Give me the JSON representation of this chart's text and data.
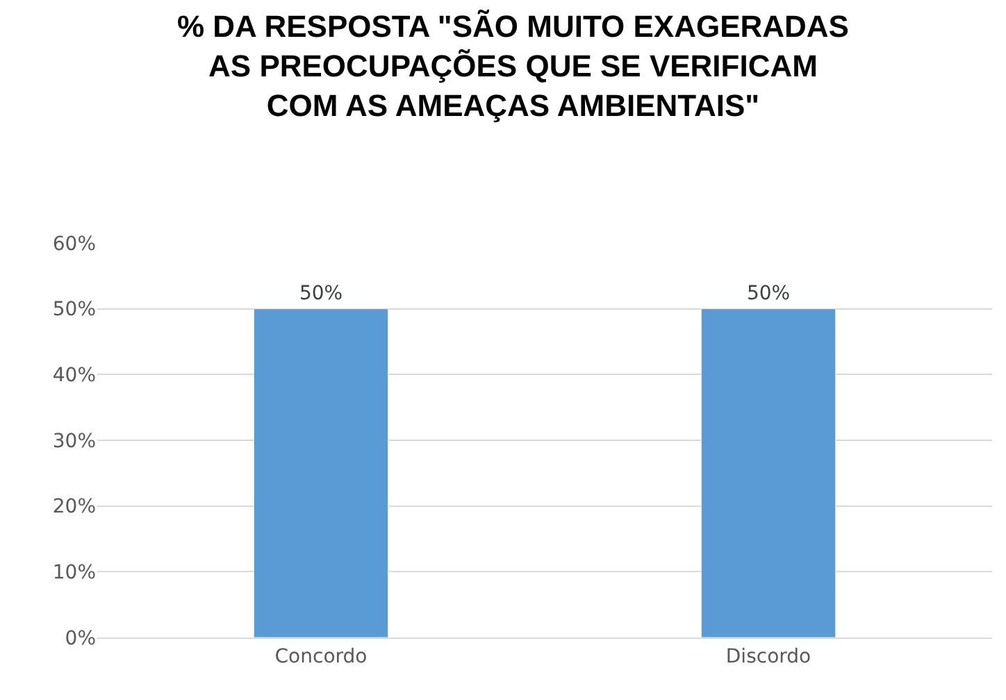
{
  "chart_data": {
    "type": "bar",
    "title": "% DA RESPOSTA \"SÃO MUITO EXAGERADAS\nAS PREOCUPAÇÕES QUE SE VERIFICAM\nCOM AS AMEAÇAS AMBIENTAIS\"",
    "categories": [
      "Concordo",
      "Discordo"
    ],
    "values": [
      50,
      50
    ],
    "value_labels": [
      "50%",
      "50%"
    ],
    "color": "#5b9bd5",
    "ylim": [
      0,
      60
    ],
    "yticks": [
      {
        "value": 0,
        "label": "0%"
      },
      {
        "value": 10,
        "label": "10%"
      },
      {
        "value": 20,
        "label": "20%"
      },
      {
        "value": 30,
        "label": "30%"
      },
      {
        "value": 40,
        "label": "40%"
      },
      {
        "value": 50,
        "label": "50%"
      },
      {
        "value": 60,
        "label": "60%"
      }
    ],
    "grid": "y"
  }
}
